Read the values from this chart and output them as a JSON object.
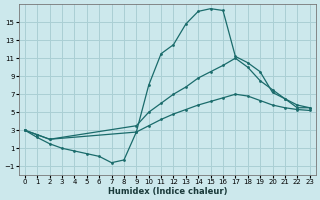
{
  "xlabel": "Humidex (Indice chaleur)",
  "ylabel": "",
  "bg_color": "#cce8ec",
  "grid_color": "#aacfd4",
  "line_color": "#1a6b6b",
  "xlim": [
    -0.5,
    23.5
  ],
  "ylim": [
    -2,
    17
  ],
  "xticks": [
    0,
    1,
    2,
    3,
    4,
    5,
    6,
    7,
    8,
    9,
    10,
    11,
    12,
    13,
    14,
    15,
    16,
    17,
    18,
    19,
    20,
    21,
    22,
    23
  ],
  "yticks": [
    -1,
    1,
    3,
    5,
    7,
    9,
    11,
    13,
    15
  ],
  "curve1_x": [
    0,
    1,
    2,
    3,
    4,
    5,
    6,
    7,
    8,
    9,
    10,
    11,
    12,
    13,
    14,
    15,
    16,
    17,
    18,
    19,
    20,
    21,
    22,
    23
  ],
  "curve1_y": [
    3.0,
    2.2,
    1.5,
    1.0,
    0.7,
    0.4,
    0.1,
    -0.6,
    -0.3,
    2.8,
    8.0,
    11.5,
    12.5,
    14.8,
    16.2,
    16.5,
    16.3,
    11.2,
    10.5,
    9.5,
    7.2,
    6.5,
    5.5,
    5.5
  ],
  "curve2_x": [
    0,
    1,
    2,
    9,
    10,
    11,
    12,
    13,
    14,
    15,
    16,
    17,
    18,
    19,
    20,
    21,
    22,
    23
  ],
  "curve2_y": [
    3.0,
    2.5,
    2.0,
    3.5,
    5.0,
    6.0,
    7.0,
    7.8,
    8.8,
    9.5,
    10.2,
    11.0,
    10.0,
    8.5,
    7.5,
    6.5,
    5.8,
    5.5
  ],
  "curve3_x": [
    0,
    1,
    2,
    9,
    10,
    11,
    12,
    13,
    14,
    15,
    16,
    17,
    18,
    19,
    20,
    21,
    22,
    23
  ],
  "curve3_y": [
    3.0,
    2.5,
    2.0,
    2.8,
    3.5,
    4.2,
    4.8,
    5.3,
    5.8,
    6.2,
    6.6,
    7.0,
    6.8,
    6.3,
    5.8,
    5.5,
    5.3,
    5.2
  ]
}
